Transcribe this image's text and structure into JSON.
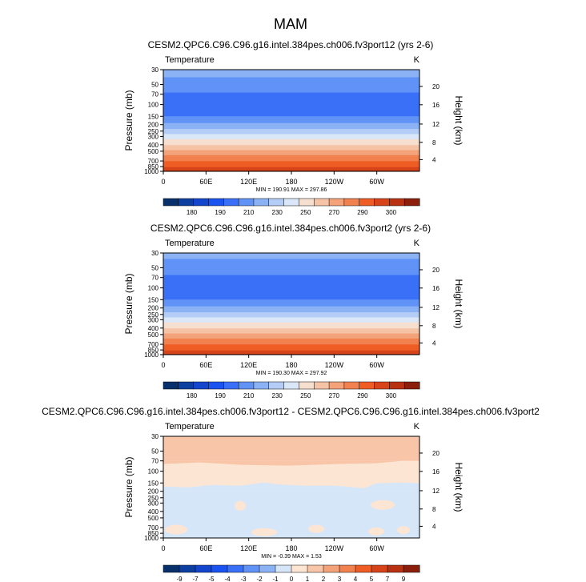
{
  "main_title": "MAM",
  "chart_data": [
    {
      "type": "heatmap",
      "title": "CESM2.QPC6.C96.C96.g16.intel.384pes.ch006.fv3port12 (yrs 2-6)",
      "left_label": "Temperature",
      "right_label": "K",
      "xlabel": "",
      "ylabel": "Pressure (mb)",
      "ylabel_right": "Height (km)",
      "x_ticks": [
        "0",
        "60E",
        "120E",
        "180",
        "120W",
        "60W"
      ],
      "y_ticks": [
        "30",
        "50",
        "70",
        "100",
        "150",
        "200",
        "250",
        "300",
        "400",
        "500",
        "700",
        "850",
        "1000"
      ],
      "height_ticks": [
        "4",
        "8",
        "12",
        "16",
        "20"
      ],
      "y_scale": "log",
      "stats": "MIN = 190.91   MAX = 297.86",
      "min": 190.91,
      "max": 297.86,
      "colorbar": {
        "labels": [
          "180",
          "190",
          "210",
          "230",
          "250",
          "270",
          "290",
          "300"
        ],
        "levels": [
          175,
          180,
          185,
          190,
          200,
          210,
          220,
          230,
          240,
          250,
          260,
          270,
          280,
          290,
          295,
          300
        ],
        "colors": [
          "#08306b",
          "#0c3fa0",
          "#1346cc",
          "#1b53f0",
          "#3a70f7",
          "#6193f7",
          "#8bb2f5",
          "#b3cdf6",
          "#d9e7f9",
          "#f6dfcf",
          "#f5c3a5",
          "#f3a27a",
          "#f1814f",
          "#ef5d24",
          "#d8441a",
          "#b83212",
          "#8c1e0c"
        ]
      },
      "profile": [
        {
          "p": 30,
          "v": 214
        },
        {
          "p": 50,
          "v": 206
        },
        {
          "p": 70,
          "v": 199
        },
        {
          "p": 100,
          "v": 195
        },
        {
          "p": 150,
          "v": 200
        },
        {
          "p": 200,
          "v": 212
        },
        {
          "p": 250,
          "v": 225
        },
        {
          "p": 300,
          "v": 235
        },
        {
          "p": 400,
          "v": 250
        },
        {
          "p": 500,
          "v": 262
        },
        {
          "p": 700,
          "v": 280
        },
        {
          "p": 850,
          "v": 289
        },
        {
          "p": 1000,
          "v": 296
        }
      ]
    },
    {
      "type": "heatmap",
      "title": "CESM2.QPC6.C96.C96.g16.intel.384pes.ch006.fv3port2 (yrs 2-6)",
      "left_label": "Temperature",
      "right_label": "K",
      "xlabel": "",
      "ylabel": "Pressure (mb)",
      "ylabel_right": "Height (km)",
      "x_ticks": [
        "0",
        "60E",
        "120E",
        "180",
        "120W",
        "60W"
      ],
      "y_ticks": [
        "30",
        "50",
        "70",
        "100",
        "150",
        "200",
        "250",
        "300",
        "400",
        "500",
        "700",
        "850",
        "1000"
      ],
      "height_ticks": [
        "4",
        "8",
        "12",
        "16",
        "20"
      ],
      "y_scale": "log",
      "stats": "MIN = 190.30   MAX = 297.92",
      "min": 190.3,
      "max": 297.92,
      "colorbar": {
        "labels": [
          "180",
          "190",
          "210",
          "230",
          "250",
          "270",
          "290",
          "300"
        ],
        "levels": [
          175,
          180,
          185,
          190,
          200,
          210,
          220,
          230,
          240,
          250,
          260,
          270,
          280,
          290,
          295,
          300
        ],
        "colors": [
          "#08306b",
          "#0c3fa0",
          "#1346cc",
          "#1b53f0",
          "#3a70f7",
          "#6193f7",
          "#8bb2f5",
          "#b3cdf6",
          "#d9e7f9",
          "#f6dfcf",
          "#f5c3a5",
          "#f3a27a",
          "#f1814f",
          "#ef5d24",
          "#d8441a",
          "#b83212",
          "#8c1e0c"
        ]
      },
      "profile": [
        {
          "p": 30,
          "v": 213
        },
        {
          "p": 50,
          "v": 205
        },
        {
          "p": 70,
          "v": 198
        },
        {
          "p": 100,
          "v": 194
        },
        {
          "p": 150,
          "v": 200
        },
        {
          "p": 200,
          "v": 212
        },
        {
          "p": 250,
          "v": 225
        },
        {
          "p": 300,
          "v": 235
        },
        {
          "p": 400,
          "v": 250
        },
        {
          "p": 500,
          "v": 262
        },
        {
          "p": 700,
          "v": 280
        },
        {
          "p": 850,
          "v": 289
        },
        {
          "p": 1000,
          "v": 296
        }
      ]
    },
    {
      "type": "heatmap",
      "title": "CESM2.QPC6.C96.C96.g16.intel.384pes.ch006.fv3port12 - CESM2.QPC6.C96.C96.g16.intel.384pes.ch006.fv3port2",
      "left_label": "Temperature",
      "right_label": "K",
      "xlabel": "",
      "ylabel": "Pressure (mb)",
      "ylabel_right": "Height (km)",
      "x_ticks": [
        "0",
        "60E",
        "120E",
        "180",
        "120W",
        "60W"
      ],
      "y_ticks": [
        "30",
        "50",
        "70",
        "100",
        "150",
        "200",
        "250",
        "300",
        "400",
        "500",
        "700",
        "850",
        "1000"
      ],
      "height_ticks": [
        "4",
        "8",
        "12",
        "16",
        "20"
      ],
      "y_scale": "log",
      "stats": "MIN = -0.39   MAX =  1.53",
      "min": -0.39,
      "max": 1.53,
      "colorbar": {
        "labels": [
          "-9",
          "-7",
          "-5",
          "-4",
          "-3",
          "-2",
          "-1",
          "0",
          "1",
          "2",
          "3",
          "4",
          "5",
          "7",
          "9"
        ],
        "colors": [
          "#08306b",
          "#0c3fa0",
          "#1346cc",
          "#1b53f0",
          "#3a70f7",
          "#6193f7",
          "#8bb2f5",
          "#d6e6f9",
          "#fde5d3",
          "#f8c5a8",
          "#f3a27a",
          "#f1814f",
          "#ef5d24",
          "#d8441a",
          "#b83212",
          "#8c1e0c"
        ]
      },
      "regions": [
        {
          "p_top": 30,
          "p_bottom": 70,
          "value": "1 to 2",
          "color": "#f8c5a8"
        },
        {
          "p_top": 70,
          "p_bottom": 200,
          "value": "0 to 1",
          "color": "#fde5d3"
        },
        {
          "p_top": 200,
          "p_bottom": 1000,
          "value": "-1 to 0",
          "color": "#d6e6f9"
        }
      ]
    }
  ]
}
